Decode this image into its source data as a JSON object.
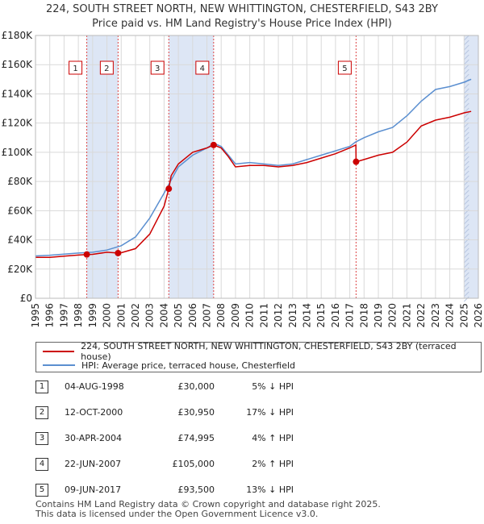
{
  "title": "224, SOUTH STREET NORTH, NEW WHITTINGTON, CHESTERFIELD, S43 2BY",
  "subtitle": "Price paid vs. HM Land Registry's House Price Index (HPI)",
  "colors": {
    "red": "#cc0000",
    "blue": "#5b8fd0",
    "band": "#dde6f5",
    "grid": "#d9d9d9"
  },
  "chart_data": {
    "type": "line",
    "title": "224, SOUTH STREET NORTH, NEW WHITTINGTON, CHESTERFIELD, S43 2BY",
    "xlim": [
      1995,
      2026
    ],
    "ylim": [
      0,
      180000
    ],
    "y_ticks": [
      {
        "value": 0,
        "label": "£0"
      },
      {
        "value": 20000,
        "label": "£20K"
      },
      {
        "value": 40000,
        "label": "£40K"
      },
      {
        "value": 60000,
        "label": "£60K"
      },
      {
        "value": 80000,
        "label": "£80K"
      },
      {
        "value": 100000,
        "label": "£100K"
      },
      {
        "value": 120000,
        "label": "£120K"
      },
      {
        "value": 140000,
        "label": "£140K"
      },
      {
        "value": 160000,
        "label": "£160K"
      },
      {
        "value": 180000,
        "label": "£180K"
      }
    ],
    "x_ticks": [
      "1995",
      "1996",
      "1997",
      "1998",
      "1999",
      "2000",
      "2001",
      "2002",
      "2003",
      "2004",
      "2005",
      "2006",
      "2007",
      "2008",
      "2009",
      "2010",
      "2011",
      "2012",
      "2013",
      "2014",
      "2015",
      "2016",
      "2017",
      "2018",
      "2019",
      "2020",
      "2021",
      "2022",
      "2023",
      "2024",
      "2025",
      "2026"
    ],
    "shaded_bands": [
      [
        1998.59,
        2000.78
      ],
      [
        2004.33,
        2007.47
      ],
      [
        2025.0,
        2026.0
      ]
    ],
    "series": [
      {
        "name": "HPI: Average price, terraced house, Chesterfield",
        "x": [
          1995,
          1996,
          1997,
          1998,
          1999,
          2000,
          2001,
          2002,
          2003,
          2004,
          2004.5,
          2005,
          2006,
          2007,
          2007.5,
          2008,
          2008.5,
          2009,
          2010,
          2011,
          2012,
          2013,
          2014,
          2015,
          2016,
          2017,
          2017.4,
          2018,
          2019,
          2020,
          2021,
          2022,
          2023,
          2024,
          2025,
          2025.5
        ],
        "values": [
          29000,
          29500,
          30200,
          31000,
          31500,
          33000,
          36000,
          42000,
          55000,
          72000,
          81000,
          90000,
          98000,
          103000,
          106000,
          104000,
          98000,
          92000,
          93000,
          92000,
          91000,
          92000,
          95000,
          98000,
          101000,
          104000,
          107000,
          110000,
          114000,
          117000,
          125000,
          135000,
          143000,
          145000,
          148000,
          150000
        ]
      },
      {
        "name": "224, SOUTH STREET NORTH, NEW WHITTINGTON, CHESTERFIELD, S43 2BY (terraced house)",
        "x": [
          1995,
          1996,
          1997,
          1998,
          1998.59,
          1999,
          2000,
          2000.78,
          2001,
          2002,
          2003,
          2004,
          2004.33,
          2004.5,
          2005,
          2006,
          2007,
          2007.47,
          2008,
          2008.5,
          2009,
          2010,
          2011,
          2012,
          2013,
          2014,
          2015,
          2016,
          2017,
          2017.43,
          2017.44,
          2018,
          2019,
          2020,
          2021,
          2022,
          2023,
          2024,
          2025,
          2025.5
        ],
        "values": [
          28000,
          28000,
          28800,
          29600,
          30000,
          30100,
          31500,
          30950,
          31200,
          34000,
          44000,
          63000,
          74995,
          84000,
          92000,
          100000,
          103000,
          105000,
          103000,
          97000,
          90000,
          91000,
          91000,
          90000,
          91000,
          93000,
          96000,
          99000,
          103000,
          105000,
          93500,
          95000,
          98000,
          100000,
          107000,
          118000,
          122000,
          124000,
          127000,
          128000
        ]
      }
    ],
    "sales": [
      {
        "num": "1",
        "x": 1998.59,
        "price": 30000
      },
      {
        "num": "2",
        "x": 2000.78,
        "price": 30950
      },
      {
        "num": "3",
        "x": 2004.33,
        "price": 74995
      },
      {
        "num": "4",
        "x": 2007.47,
        "price": 105000
      },
      {
        "num": "5",
        "x": 2017.44,
        "price": 93500
      }
    ]
  },
  "legend": {
    "red_label": "224, SOUTH STREET NORTH, NEW WHITTINGTON, CHESTERFIELD, S43 2BY (terraced house)",
    "blue_label": "HPI: Average price, terraced house, Chesterfield"
  },
  "sales_table": [
    {
      "num": "1",
      "date": "04-AUG-1998",
      "price": "£30,000",
      "hpi": "5% ↓ HPI"
    },
    {
      "num": "2",
      "date": "12-OCT-2000",
      "price": "£30,950",
      "hpi": "17% ↓ HPI"
    },
    {
      "num": "3",
      "date": "30-APR-2004",
      "price": "£74,995",
      "hpi": "4% ↑ HPI"
    },
    {
      "num": "4",
      "date": "22-JUN-2007",
      "price": "£105,000",
      "hpi": "2% ↑ HPI"
    },
    {
      "num": "5",
      "date": "09-JUN-2017",
      "price": "£93,500",
      "hpi": "13% ↓ HPI"
    }
  ],
  "footer": {
    "line1": "Contains HM Land Registry data © Crown copyright and database right 2025.",
    "line2": "This data is licensed under the Open Government Licence v3.0."
  }
}
